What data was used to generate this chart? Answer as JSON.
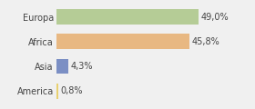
{
  "categories": [
    "Europa",
    "Africa",
    "Asia",
    "America"
  ],
  "values": [
    49.0,
    45.8,
    4.3,
    0.8
  ],
  "bar_colors": [
    "#b5cc96",
    "#e8b882",
    "#7b8fc4",
    "#e8d070"
  ],
  "labels": [
    "49,0%",
    "45,8%",
    "4,3%",
    "0,8%"
  ],
  "xlim": [
    0,
    58
  ],
  "background_color": "#f0f0f0",
  "bar_height": 0.62,
  "label_fontsize": 7.0,
  "tick_fontsize": 7.0,
  "figsize": [
    2.8,
    1.2
  ],
  "dpi": 100
}
